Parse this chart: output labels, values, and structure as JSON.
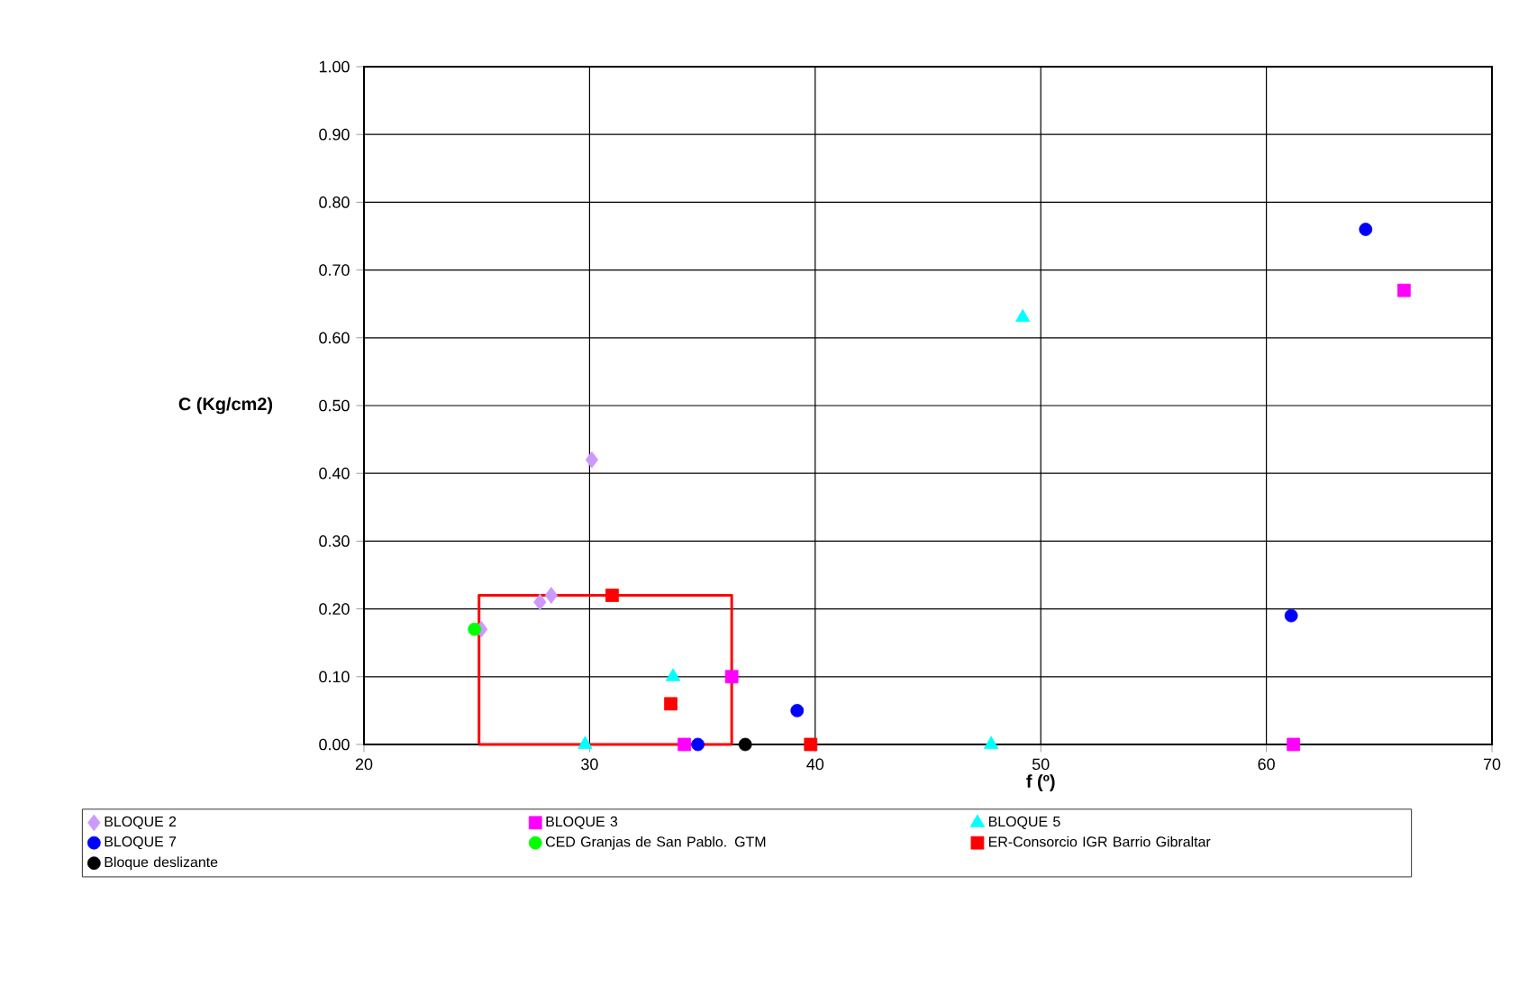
{
  "chart_data": {
    "type": "scatter",
    "xlabel": "f (º)",
    "ylabel": "C (Kg/cm2)",
    "xlim": [
      20,
      70
    ],
    "xticks": [
      20,
      30,
      40,
      50,
      60,
      70
    ],
    "ylim": [
      0,
      1
    ],
    "yticks": [
      {
        "value": 0,
        "label": "0.00"
      },
      {
        "value": 0.1,
        "label": "0.10"
      },
      {
        "value": 0.2,
        "label": "0.20"
      },
      {
        "value": 0.3,
        "label": "0.30"
      },
      {
        "value": 0.4,
        "label": "0.40"
      },
      {
        "value": 0.5,
        "label": "0.50"
      },
      {
        "value": 0.6,
        "label": "0.60"
      },
      {
        "value": 0.7,
        "label": "0.70"
      },
      {
        "value": 0.8,
        "label": "0.80"
      },
      {
        "value": 0.9,
        "label": "0.90"
      },
      {
        "value": 1.0,
        "label": "1.00"
      }
    ],
    "grid": true,
    "legend": "bottom",
    "series": [
      {
        "name": "BLOQUE 2",
        "color": "#cc99ff",
        "marker": "diamond",
        "x": [
          27.8,
          28.3,
          30.1,
          25.2
        ],
        "values": [
          0.21,
          0.22,
          0.42,
          0.17
        ]
      },
      {
        "name": "BLOQUE 3",
        "color": "#ff00ff",
        "marker": "square",
        "x": [
          34.2,
          36.3,
          61.2,
          66.1
        ],
        "values": [
          0.0,
          0.1,
          0.0,
          0.67
        ]
      },
      {
        "name": "BLOQUE 5",
        "color": "#00ffff",
        "marker": "triangle",
        "x": [
          29.8,
          33.7,
          47.8,
          49.2
        ],
        "values": [
          0.0,
          0.1,
          0.0,
          0.63
        ]
      },
      {
        "name": "BLOQUE 7",
        "color": "#0000ff",
        "marker": "circle",
        "x": [
          34.8,
          39.2,
          61.1,
          64.4
        ],
        "values": [
          0.0,
          0.05,
          0.19,
          0.76
        ]
      },
      {
        "name": "CED Granjas de San Pablo. GTM",
        "color": "#00ff00",
        "marker": "circle",
        "x": [
          24.9
        ],
        "values": [
          0.17
        ]
      },
      {
        "name": "ER-Consorcio IGR Barrio Gibraltar",
        "color": "#ff0000",
        "marker": "square",
        "x": [
          31.0,
          33.6,
          39.8
        ],
        "values": [
          0.22,
          0.06,
          0.0
        ]
      },
      {
        "name": "Bloque deslizante",
        "color": "#000000",
        "marker": "circle",
        "x": [
          36.9
        ],
        "values": [
          0.0
        ]
      },
      {
        "type": "line",
        "color": "#ff0000",
        "marker": "none",
        "x": [
          25.1,
          25.1,
          36.3,
          36.3
        ],
        "values": [
          0.0,
          0.22,
          0.22,
          0.0
        ]
      },
      {
        "type": "line",
        "color": "#ff0000",
        "marker": "none",
        "x": [
          25.1,
          36.3
        ],
        "values": [
          0.0,
          0.0
        ]
      }
    ]
  }
}
